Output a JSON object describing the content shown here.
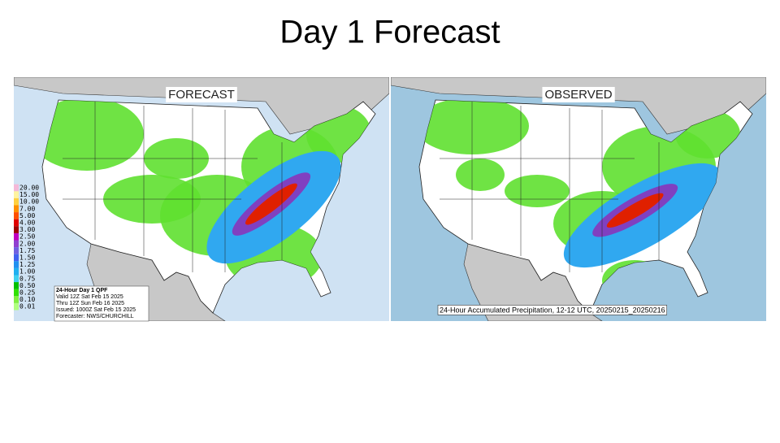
{
  "title": "Day 1 Forecast",
  "forecast": {
    "label": "FORECAST",
    "legend": [
      {
        "label": "20.00",
        "color": "#f4b8d8"
      },
      {
        "label": "15.00",
        "color": "#fff3a0"
      },
      {
        "label": "10.00",
        "color": "#ffd040"
      },
      {
        "label": "7.00",
        "color": "#ff9000"
      },
      {
        "label": "5.00",
        "color": "#ff5000"
      },
      {
        "label": "4.00",
        "color": "#e00000"
      },
      {
        "label": "3.00",
        "color": "#a00000"
      },
      {
        "label": "2.50",
        "color": "#c000c0"
      },
      {
        "label": "2.00",
        "color": "#9040d0"
      },
      {
        "label": "1.75",
        "color": "#7060e0"
      },
      {
        "label": "1.50",
        "color": "#4060f0"
      },
      {
        "label": "1.25",
        "color": "#2090f0"
      },
      {
        "label": "1.00",
        "color": "#20b0f0"
      },
      {
        "label": "0.75",
        "color": "#40d0f0"
      },
      {
        "label": "0.50",
        "color": "#00c000"
      },
      {
        "label": "0.25",
        "color": "#30e000"
      },
      {
        "label": "0.10",
        "color": "#80f040"
      },
      {
        "label": "0.01",
        "color": "#b0ff80"
      }
    ],
    "info": [
      "24-Hour Day 1 QPF",
      "Valid 12Z Sat Feb 15 2025",
      "Thru 12Z Sun Feb 16 2025",
      "Issued: 1000Z Sat Feb 15 2025",
      "Forecaster: NWS/CHURCHILL"
    ]
  },
  "observed": {
    "label": "OBSERVED",
    "caption": "24-Hour Accumulated Precipitation, 12-12 UTC, 20250215_20250216"
  }
}
